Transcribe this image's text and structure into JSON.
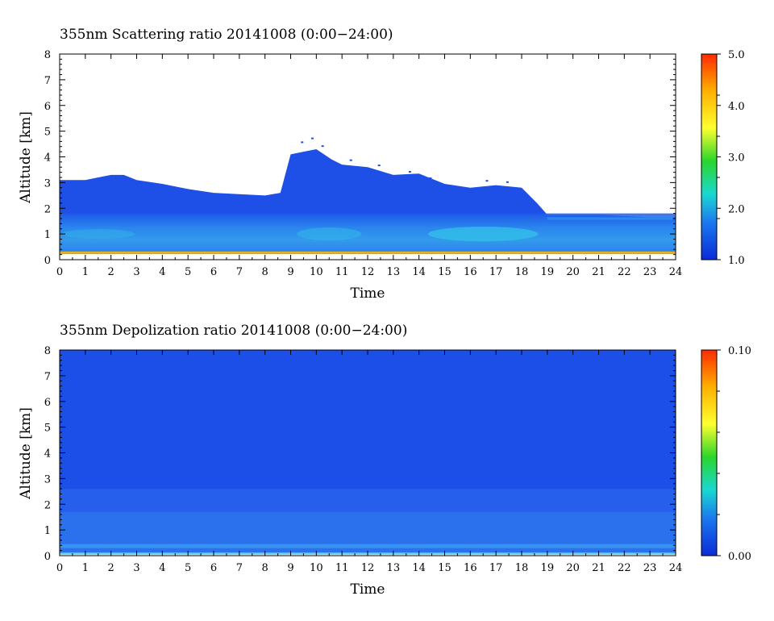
{
  "chart_data": [
    {
      "type": "heatmap",
      "title": "355nm Scattering ratio  20141008 (0:00−24:00)",
      "xlabel": "Time",
      "ylabel": "Altitude [km]",
      "xlim": [
        0,
        24
      ],
      "ylim": [
        0,
        8
      ],
      "x_ticks": [
        "0",
        "1",
        "2",
        "3",
        "4",
        "5",
        "6",
        "7",
        "8",
        "9",
        "10",
        "11",
        "12",
        "13",
        "14",
        "15",
        "16",
        "17",
        "18",
        "19",
        "20",
        "21",
        "22",
        "23",
        "24"
      ],
      "y_ticks": [
        "0",
        "1",
        "2",
        "3",
        "4",
        "5",
        "6",
        "7",
        "8"
      ],
      "colorbar": {
        "min": 1.0,
        "max": 5.0,
        "labels": [
          "1.0",
          "2.0",
          "3.0",
          "4.0",
          "5.0"
        ]
      },
      "cloud_top_km": [
        [
          0,
          3.1
        ],
        [
          1,
          3.1
        ],
        [
          2,
          3.3
        ],
        [
          2.5,
          3.3
        ],
        [
          3,
          3.1
        ],
        [
          4,
          2.95
        ],
        [
          5,
          2.75
        ],
        [
          6,
          2.6
        ],
        [
          7,
          2.55
        ],
        [
          8,
          2.5
        ],
        [
          8.6,
          2.6
        ],
        [
          9,
          4.1
        ],
        [
          10,
          4.3
        ],
        [
          10.6,
          3.9
        ],
        [
          11,
          3.7
        ],
        [
          12,
          3.6
        ],
        [
          13,
          3.3
        ],
        [
          14,
          3.35
        ],
        [
          15,
          2.95
        ],
        [
          16,
          2.8
        ],
        [
          17,
          2.9
        ],
        [
          18,
          2.8
        ],
        [
          18.6,
          2.2
        ],
        [
          19,
          1.75
        ],
        [
          20,
          1.75
        ],
        [
          21,
          1.75
        ],
        [
          22,
          1.7
        ],
        [
          23,
          1.65
        ],
        [
          24,
          1.65
        ]
      ],
      "enhanced_layer_km": [
        0.5,
        1.5
      ],
      "max_enhancement_time": [
        15,
        18
      ]
    },
    {
      "type": "heatmap",
      "title": "355nm Depolization ratio  20141008 (0:00−24:00)",
      "xlabel": "Time",
      "ylabel": "Altitude [km]",
      "xlim": [
        0,
        24
      ],
      "ylim": [
        0,
        8
      ],
      "x_ticks": [
        "0",
        "1",
        "2",
        "3",
        "4",
        "5",
        "6",
        "7",
        "8",
        "9",
        "10",
        "11",
        "12",
        "13",
        "14",
        "15",
        "16",
        "17",
        "18",
        "19",
        "20",
        "21",
        "22",
        "23",
        "24"
      ],
      "y_ticks": [
        "0",
        "1",
        "2",
        "3",
        "4",
        "5",
        "6",
        "7",
        "8"
      ],
      "colorbar": {
        "min": 0.0,
        "max": 0.1,
        "labels": [
          "0.00",
          "0.10"
        ]
      },
      "values_range": [
        0.0,
        0.02
      ]
    }
  ],
  "colors": {
    "background": "#ffffff",
    "base_blue": "#1e4fe6",
    "low_level": "#2a8ef0",
    "enhanced": "#33c2e8",
    "colorbar_stops": [
      "#0a2bd8",
      "#1b78f0",
      "#19d9d0",
      "#2ad62a",
      "#ffff30",
      "#ffb000",
      "#ff2a00"
    ]
  }
}
